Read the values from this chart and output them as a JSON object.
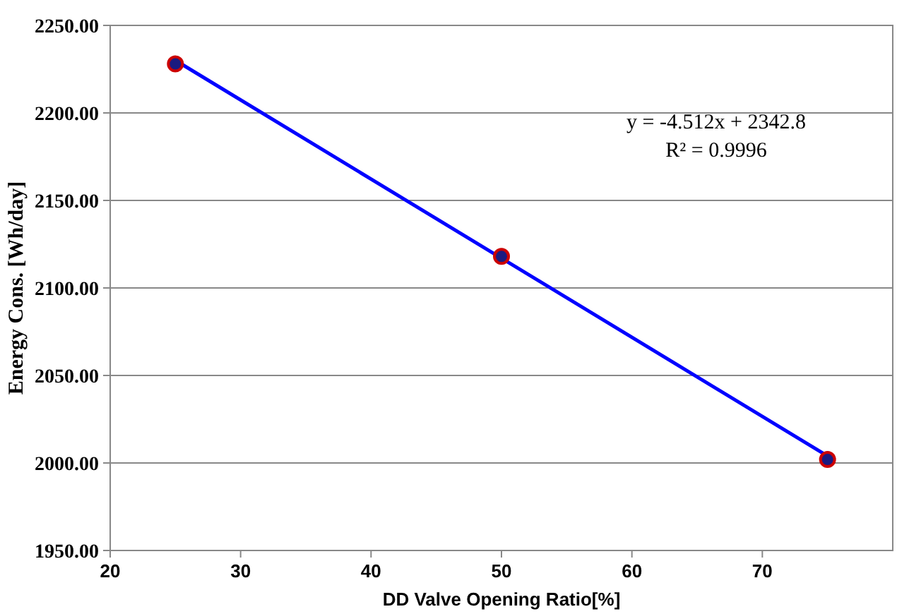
{
  "chart_data": {
    "type": "scatter",
    "xlabel": "DD Valve Opening Ratio[%]",
    "ylabel": "Energy Cons. [Wh/day]",
    "x": [
      25,
      50,
      75
    ],
    "series": [
      {
        "type": "line",
        "x": [
          25,
          75
        ],
        "values": [
          2230,
          2004
        ],
        "color": "#0000ff"
      },
      {
        "values": [
          2228,
          2118,
          2002
        ],
        "color": "#cc0000",
        "marker": "circle"
      }
    ],
    "xlim": [
      20,
      80
    ],
    "xticks": [
      20,
      30,
      40,
      50,
      60,
      70
    ],
    "ylim": [
      1950,
      2250
    ],
    "yticks": [
      {
        "value": 1950,
        "label": "1950.00"
      },
      {
        "value": 2000,
        "label": "2000.00"
      },
      {
        "value": 2050,
        "label": "2050.00"
      },
      {
        "value": 2100,
        "label": "2100.00"
      },
      {
        "value": 2150,
        "label": "2150.00"
      },
      {
        "value": 2200,
        "label": "2200.00"
      },
      {
        "value": 2250,
        "label": "2250.00"
      }
    ],
    "grid": "y",
    "annotations": [
      "y = -4.512x + 2342.8",
      "R² = 0.9996"
    ]
  }
}
